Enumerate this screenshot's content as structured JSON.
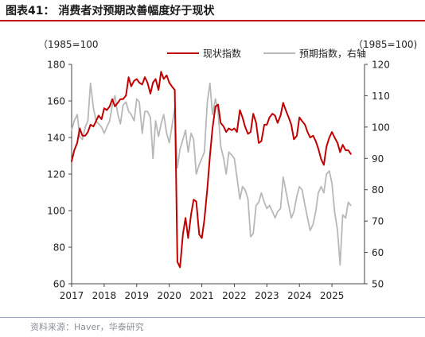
{
  "title": "图表41：  消费者对预期改善幅度好于现状",
  "source": "资料来源：Haver，华泰研究",
  "chart_data": {
    "type": "line",
    "units": {
      "left": "（1985=100",
      "right": "（1985=100)"
    },
    "x_ticks": [
      "2017",
      "2018",
      "2019",
      "2020",
      "2021",
      "2022",
      "2023",
      "2024",
      "2025"
    ],
    "x_range": [
      2017.0,
      2026.0
    ],
    "y_left": {
      "range": [
        60,
        180
      ],
      "ticks": [
        "60",
        "80",
        "100",
        "120",
        "140",
        "160",
        "180"
      ]
    },
    "y_right": {
      "range": [
        50,
        120
      ],
      "ticks": [
        "50",
        "60",
        "70",
        "80",
        "90",
        "100",
        "110",
        "120"
      ]
    },
    "legend_position": "top-center",
    "series": [
      {
        "name": "现状指数",
        "axis": "left",
        "color": "#c00000",
        "points": [
          [
            2017.0,
            127
          ],
          [
            2017.08,
            133
          ],
          [
            2017.17,
            137
          ],
          [
            2017.25,
            145
          ],
          [
            2017.33,
            141
          ],
          [
            2017.42,
            141
          ],
          [
            2017.5,
            143
          ],
          [
            2017.58,
            147
          ],
          [
            2017.67,
            146
          ],
          [
            2017.75,
            149
          ],
          [
            2017.83,
            152
          ],
          [
            2017.92,
            150
          ],
          [
            2018.0,
            156
          ],
          [
            2018.08,
            155
          ],
          [
            2018.17,
            157
          ],
          [
            2018.25,
            161
          ],
          [
            2018.33,
            157
          ],
          [
            2018.42,
            159
          ],
          [
            2018.5,
            161
          ],
          [
            2018.58,
            161
          ],
          [
            2018.67,
            163
          ],
          [
            2018.75,
            173
          ],
          [
            2018.83,
            168
          ],
          [
            2018.92,
            171
          ],
          [
            2019.0,
            172
          ],
          [
            2019.08,
            170
          ],
          [
            2019.17,
            169
          ],
          [
            2019.25,
            173
          ],
          [
            2019.33,
            170
          ],
          [
            2019.42,
            164
          ],
          [
            2019.5,
            170
          ],
          [
            2019.58,
            172
          ],
          [
            2019.67,
            166
          ],
          [
            2019.75,
            176
          ],
          [
            2019.83,
            172
          ],
          [
            2019.92,
            174
          ],
          [
            2020.0,
            170
          ],
          [
            2020.08,
            168
          ],
          [
            2020.17,
            166
          ],
          [
            2020.25,
            72
          ],
          [
            2020.33,
            69
          ],
          [
            2020.42,
            87
          ],
          [
            2020.5,
            96
          ],
          [
            2020.58,
            85
          ],
          [
            2020.67,
            98
          ],
          [
            2020.75,
            106
          ],
          [
            2020.83,
            105
          ],
          [
            2020.92,
            87
          ],
          [
            2021.0,
            85
          ],
          [
            2021.08,
            95
          ],
          [
            2021.17,
            112
          ],
          [
            2021.25,
            130
          ],
          [
            2021.33,
            145
          ],
          [
            2021.42,
            157
          ],
          [
            2021.5,
            158
          ],
          [
            2021.58,
            148
          ],
          [
            2021.67,
            146
          ],
          [
            2021.75,
            143
          ],
          [
            2021.83,
            145
          ],
          [
            2021.92,
            144
          ],
          [
            2022.0,
            145
          ],
          [
            2022.08,
            143
          ],
          [
            2022.17,
            155
          ],
          [
            2022.25,
            151
          ],
          [
            2022.33,
            146
          ],
          [
            2022.42,
            142
          ],
          [
            2022.5,
            143
          ],
          [
            2022.58,
            153
          ],
          [
            2022.67,
            148
          ],
          [
            2022.75,
            137
          ],
          [
            2022.83,
            138
          ],
          [
            2022.92,
            147
          ],
          [
            2023.0,
            147
          ],
          [
            2023.08,
            151
          ],
          [
            2023.17,
            153
          ],
          [
            2023.25,
            152
          ],
          [
            2023.33,
            148
          ],
          [
            2023.42,
            152
          ],
          [
            2023.5,
            159
          ],
          [
            2023.58,
            155
          ],
          [
            2023.67,
            151
          ],
          [
            2023.75,
            147
          ],
          [
            2023.83,
            139
          ],
          [
            2023.92,
            141
          ],
          [
            2024.0,
            151
          ],
          [
            2024.08,
            149
          ],
          [
            2024.17,
            147
          ],
          [
            2024.25,
            143
          ],
          [
            2024.33,
            140
          ],
          [
            2024.42,
            141
          ],
          [
            2024.5,
            138
          ],
          [
            2024.58,
            134
          ],
          [
            2024.67,
            128
          ],
          [
            2024.75,
            125
          ],
          [
            2024.83,
            135
          ],
          [
            2024.92,
            140
          ],
          [
            2025.0,
            143
          ],
          [
            2025.08,
            140
          ],
          [
            2025.17,
            137
          ],
          [
            2025.25,
            132
          ],
          [
            2025.33,
            136
          ],
          [
            2025.42,
            133
          ],
          [
            2025.5,
            133
          ],
          [
            2025.58,
            131
          ]
        ]
      },
      {
        "name": "预期指数，右轴",
        "axis": "right",
        "color": "#b8b8b8",
        "points": [
          [
            2017.0,
            99
          ],
          [
            2017.08,
            102
          ],
          [
            2017.17,
            104
          ],
          [
            2017.25,
            97
          ],
          [
            2017.33,
            96
          ],
          [
            2017.42,
            100
          ],
          [
            2017.5,
            102
          ],
          [
            2017.58,
            114
          ],
          [
            2017.67,
            106
          ],
          [
            2017.75,
            102
          ],
          [
            2017.83,
            101
          ],
          [
            2017.92,
            100
          ],
          [
            2018.0,
            98
          ],
          [
            2018.08,
            100
          ],
          [
            2018.17,
            102
          ],
          [
            2018.25,
            107
          ],
          [
            2018.33,
            110
          ],
          [
            2018.42,
            104
          ],
          [
            2018.5,
            101
          ],
          [
            2018.58,
            107
          ],
          [
            2018.67,
            108
          ],
          [
            2018.75,
            105
          ],
          [
            2018.83,
            104
          ],
          [
            2018.92,
            102
          ],
          [
            2019.0,
            109
          ],
          [
            2019.08,
            108
          ],
          [
            2019.17,
            98
          ],
          [
            2019.25,
            105
          ],
          [
            2019.33,
            105
          ],
          [
            2019.42,
            103
          ],
          [
            2019.5,
            90
          ],
          [
            2019.58,
            102
          ],
          [
            2019.67,
            97
          ],
          [
            2019.75,
            101
          ],
          [
            2019.83,
            104
          ],
          [
            2019.92,
            98
          ],
          [
            2020.0,
            95
          ],
          [
            2020.08,
            100
          ],
          [
            2020.17,
            106
          ],
          [
            2020.25,
            87
          ],
          [
            2020.33,
            93
          ],
          [
            2020.42,
            96
          ],
          [
            2020.5,
            99
          ],
          [
            2020.58,
            92
          ],
          [
            2020.67,
            98
          ],
          [
            2020.75,
            96
          ],
          [
            2020.83,
            85
          ],
          [
            2020.92,
            88
          ],
          [
            2021.0,
            90
          ],
          [
            2021.08,
            92
          ],
          [
            2021.17,
            108
          ],
          [
            2021.25,
            114
          ],
          [
            2021.33,
            104
          ],
          [
            2021.42,
            109
          ],
          [
            2021.5,
            105
          ],
          [
            2021.58,
            94
          ],
          [
            2021.67,
            90
          ],
          [
            2021.75,
            85
          ],
          [
            2021.83,
            92
          ],
          [
            2021.92,
            91
          ],
          [
            2022.0,
            90
          ],
          [
            2022.08,
            84
          ],
          [
            2022.17,
            77
          ],
          [
            2022.25,
            81
          ],
          [
            2022.33,
            80
          ],
          [
            2022.42,
            77
          ],
          [
            2022.5,
            65
          ],
          [
            2022.58,
            66
          ],
          [
            2022.67,
            75
          ],
          [
            2022.75,
            76
          ],
          [
            2022.83,
            79
          ],
          [
            2022.92,
            76
          ],
          [
            2023.0,
            74
          ],
          [
            2023.08,
            75
          ],
          [
            2023.17,
            73
          ],
          [
            2023.25,
            71
          ],
          [
            2023.33,
            73
          ],
          [
            2023.42,
            74
          ],
          [
            2023.5,
            84
          ],
          [
            2023.58,
            80
          ],
          [
            2023.67,
            75
          ],
          [
            2023.75,
            71
          ],
          [
            2023.83,
            73
          ],
          [
            2023.92,
            78
          ],
          [
            2024.0,
            81
          ],
          [
            2024.08,
            80
          ],
          [
            2024.17,
            75
          ],
          [
            2024.25,
            71
          ],
          [
            2024.33,
            67
          ],
          [
            2024.42,
            69
          ],
          [
            2024.5,
            73
          ],
          [
            2024.58,
            79
          ],
          [
            2024.67,
            81
          ],
          [
            2024.75,
            79
          ],
          [
            2024.83,
            85
          ],
          [
            2024.92,
            86
          ],
          [
            2025.0,
            82
          ],
          [
            2025.08,
            73
          ],
          [
            2025.17,
            67
          ],
          [
            2025.25,
            56
          ],
          [
            2025.33,
            72
          ],
          [
            2025.42,
            71
          ],
          [
            2025.5,
            76
          ],
          [
            2025.58,
            75
          ]
        ]
      }
    ]
  }
}
